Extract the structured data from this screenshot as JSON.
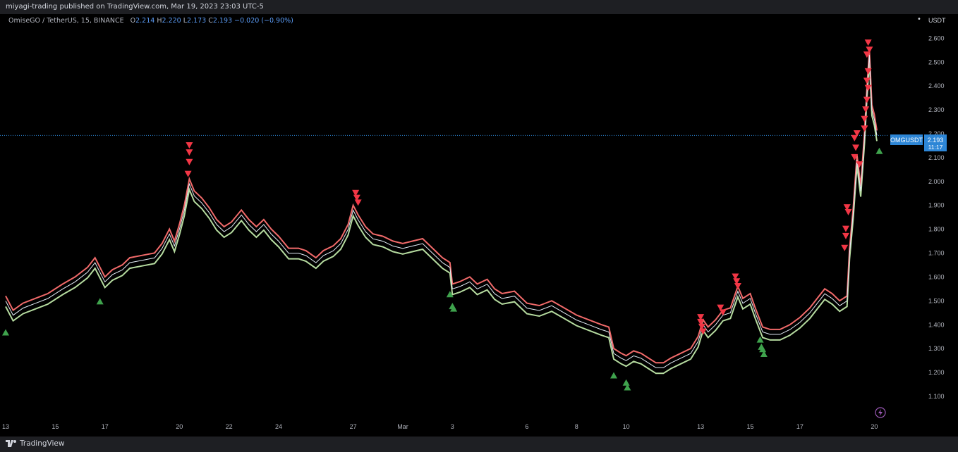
{
  "header": {
    "publisher": "miyagi-trading published on TradingView.com, Mar 19, 2023 23:03 UTC-5"
  },
  "symbol_bar": {
    "name": "OmiseGO / TetherUS, 15, BINANCE",
    "open_label": "O",
    "open": "2.214",
    "high_label": "H",
    "high": "2.220",
    "low_label": "L",
    "low": "2.173",
    "close_label": "C",
    "close": "2.193",
    "change": "−0.020 (−0.90%)"
  },
  "price_tag": {
    "ticker": "OMGUSDT",
    "price": "2.193",
    "countdown": "11:17"
  },
  "footer": {
    "brand": "TradingView"
  },
  "colors": {
    "background": "#000000",
    "price_line": "#e3ecf7",
    "upper_band": "#f16a6a",
    "lower_band": "#b6dca0",
    "sell_marker": "#f23645",
    "buy_marker": "#3fa34d",
    "price_tag_bg": "#2d86d6"
  },
  "chart_data": {
    "type": "line",
    "unit": "USDT",
    "ylim": [
      1.05,
      2.66
    ],
    "yticks": [
      "2.600",
      "2.500",
      "2.400",
      "2.300",
      "2.200",
      "2.100",
      "2.000",
      "1.900",
      "1.800",
      "1.700",
      "1.600",
      "1.500",
      "1.400",
      "1.300",
      "1.200",
      "1.100"
    ],
    "xlim": [
      13.0,
      48.3
    ],
    "xticks": [
      {
        "label": "13",
        "t": 13
      },
      {
        "label": "15",
        "t": 15
      },
      {
        "label": "17",
        "t": 17
      },
      {
        "label": "20",
        "t": 20
      },
      {
        "label": "22",
        "t": 22
      },
      {
        "label": "24",
        "t": 24
      },
      {
        "label": "27",
        "t": 27
      },
      {
        "label": "Mar",
        "t": 29
      },
      {
        "label": "3",
        "t": 31
      },
      {
        "label": "6",
        "t": 34
      },
      {
        "label": "8",
        "t": 36
      },
      {
        "label": "10",
        "t": 38
      },
      {
        "label": "13",
        "t": 41
      },
      {
        "label": "15",
        "t": 43
      },
      {
        "label": "17",
        "t": 45
      },
      {
        "label": "20",
        "t": 48
      }
    ],
    "last_price": 2.193,
    "series": [
      {
        "values": [
          [
            13.0,
            1.5
          ],
          [
            13.3,
            1.44
          ],
          [
            13.7,
            1.47
          ],
          [
            14.2,
            1.49
          ],
          [
            14.7,
            1.51
          ],
          [
            15.3,
            1.55
          ],
          [
            15.8,
            1.58
          ],
          [
            16.3,
            1.62
          ],
          [
            16.6,
            1.66
          ],
          [
            16.8,
            1.62
          ],
          [
            17.0,
            1.58
          ],
          [
            17.3,
            1.61
          ],
          [
            17.7,
            1.63
          ],
          [
            18.0,
            1.66
          ],
          [
            18.5,
            1.67
          ],
          [
            19.0,
            1.68
          ],
          [
            19.3,
            1.72
          ],
          [
            19.6,
            1.78
          ],
          [
            19.8,
            1.73
          ],
          [
            20.0,
            1.8
          ],
          [
            20.2,
            1.88
          ],
          [
            20.4,
            1.99
          ],
          [
            20.6,
            1.94
          ],
          [
            20.9,
            1.91
          ],
          [
            21.2,
            1.87
          ],
          [
            21.5,
            1.82
          ],
          [
            21.8,
            1.79
          ],
          [
            22.1,
            1.81
          ],
          [
            22.5,
            1.86
          ],
          [
            22.8,
            1.82
          ],
          [
            23.1,
            1.79
          ],
          [
            23.4,
            1.82
          ],
          [
            23.7,
            1.78
          ],
          [
            24.0,
            1.75
          ],
          [
            24.4,
            1.7
          ],
          [
            24.8,
            1.7
          ],
          [
            25.1,
            1.69
          ],
          [
            25.5,
            1.66
          ],
          [
            25.8,
            1.69
          ],
          [
            26.2,
            1.71
          ],
          [
            26.5,
            1.74
          ],
          [
            26.8,
            1.8
          ],
          [
            27.0,
            1.88
          ],
          [
            27.2,
            1.84
          ],
          [
            27.5,
            1.79
          ],
          [
            27.8,
            1.76
          ],
          [
            28.2,
            1.75
          ],
          [
            28.6,
            1.73
          ],
          [
            29.0,
            1.72
          ],
          [
            29.4,
            1.73
          ],
          [
            29.8,
            1.74
          ],
          [
            30.2,
            1.7
          ],
          [
            30.6,
            1.66
          ],
          [
            30.9,
            1.64
          ],
          [
            31.0,
            1.55
          ],
          [
            31.3,
            1.56
          ],
          [
            31.7,
            1.58
          ],
          [
            32.0,
            1.55
          ],
          [
            32.4,
            1.57
          ],
          [
            32.7,
            1.53
          ],
          [
            33.0,
            1.51
          ],
          [
            33.5,
            1.52
          ],
          [
            34.0,
            1.47
          ],
          [
            34.5,
            1.46
          ],
          [
            35.0,
            1.48
          ],
          [
            35.5,
            1.45
          ],
          [
            36.0,
            1.42
          ],
          [
            36.5,
            1.4
          ],
          [
            37.0,
            1.38
          ],
          [
            37.3,
            1.37
          ],
          [
            37.5,
            1.28
          ],
          [
            37.8,
            1.26
          ],
          [
            38.0,
            1.25
          ],
          [
            38.3,
            1.27
          ],
          [
            38.6,
            1.26
          ],
          [
            38.9,
            1.24
          ],
          [
            39.2,
            1.22
          ],
          [
            39.5,
            1.22
          ],
          [
            39.8,
            1.24
          ],
          [
            40.2,
            1.26
          ],
          [
            40.6,
            1.28
          ],
          [
            40.9,
            1.33
          ],
          [
            41.1,
            1.4
          ],
          [
            41.3,
            1.37
          ],
          [
            41.6,
            1.4
          ],
          [
            41.9,
            1.44
          ],
          [
            42.2,
            1.45
          ],
          [
            42.5,
            1.54
          ],
          [
            42.7,
            1.49
          ],
          [
            43.0,
            1.51
          ],
          [
            43.2,
            1.45
          ],
          [
            43.5,
            1.37
          ],
          [
            43.8,
            1.36
          ],
          [
            44.2,
            1.36
          ],
          [
            44.6,
            1.38
          ],
          [
            45.0,
            1.41
          ],
          [
            45.4,
            1.45
          ],
          [
            45.7,
            1.49
          ],
          [
            46.0,
            1.53
          ],
          [
            46.3,
            1.51
          ],
          [
            46.6,
            1.48
          ],
          [
            46.9,
            1.5
          ],
          [
            47.0,
            1.7
          ],
          [
            47.15,
            1.87
          ],
          [
            47.3,
            2.09
          ],
          [
            47.45,
            1.96
          ],
          [
            47.6,
            2.18
          ],
          [
            47.7,
            2.37
          ],
          [
            47.8,
            2.53
          ],
          [
            47.9,
            2.3
          ],
          [
            48.0,
            2.26
          ],
          [
            48.1,
            2.193
          ]
        ]
      }
    ],
    "sell_signals": [
      [
        20.4,
        2.15
      ],
      [
        20.4,
        2.12
      ],
      [
        20.4,
        2.08
      ],
      [
        20.35,
        2.03
      ],
      [
        27.1,
        1.95
      ],
      [
        27.15,
        1.93
      ],
      [
        27.2,
        1.91
      ],
      [
        41.0,
        1.43
      ],
      [
        41.0,
        1.41
      ],
      [
        41.05,
        1.39
      ],
      [
        41.1,
        1.37
      ],
      [
        41.8,
        1.47
      ],
      [
        41.9,
        1.45
      ],
      [
        42.4,
        1.6
      ],
      [
        42.45,
        1.58
      ],
      [
        42.5,
        1.56
      ],
      [
        46.9,
        1.89
      ],
      [
        46.95,
        1.87
      ],
      [
        46.85,
        1.8
      ],
      [
        46.85,
        1.77
      ],
      [
        46.8,
        1.72
      ],
      [
        47.2,
        2.18
      ],
      [
        47.25,
        2.14
      ],
      [
        47.2,
        2.1
      ],
      [
        47.3,
        2.2
      ],
      [
        47.4,
        2.07
      ],
      [
        47.75,
        2.58
      ],
      [
        47.8,
        2.55
      ],
      [
        47.7,
        2.53
      ],
      [
        47.75,
        2.46
      ],
      [
        47.7,
        2.42
      ],
      [
        47.75,
        2.39
      ],
      [
        47.7,
        2.34
      ],
      [
        47.65,
        2.3
      ],
      [
        47.6,
        2.26
      ],
      [
        47.6,
        2.22
      ]
    ],
    "buy_signals": [
      [
        13.0,
        1.37
      ],
      [
        16.8,
        1.5
      ],
      [
        30.9,
        1.53
      ],
      [
        31.0,
        1.48
      ],
      [
        31.05,
        1.47
      ],
      [
        37.5,
        1.19
      ],
      [
        38.0,
        1.16
      ],
      [
        38.05,
        1.14
      ],
      [
        43.4,
        1.34
      ],
      [
        43.45,
        1.31
      ],
      [
        43.5,
        1.3
      ],
      [
        43.55,
        1.28
      ],
      [
        48.2,
        2.13
      ]
    ]
  }
}
